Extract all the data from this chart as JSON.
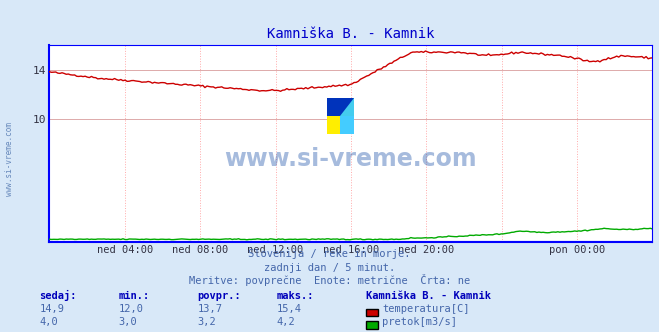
{
  "title": "Kamniška B. - Kamnik",
  "bg_color": "#d8e8f8",
  "plot_bg_color": "#ffffff",
  "x_labels": [
    "ned 04:00",
    "ned 08:00",
    "ned 12:00",
    "ned 16:00",
    "ned 20:00",
    "pon 00:00"
  ],
  "x_ticks_frac": [
    0.125,
    0.25,
    0.375,
    0.5,
    0.625,
    0.875
  ],
  "ylim": [
    0,
    16.0
  ],
  "yticks": [
    10,
    14
  ],
  "grid_color_h": "#ddaaaa",
  "grid_color_v": "#ffaaaa",
  "temp_color": "#cc0000",
  "flow_color": "#00aa00",
  "blue_line_color": "#0000ff",
  "text_color": "#4466aa",
  "title_color": "#0000cc",
  "watermark": "www.si-vreme.com",
  "watermark_color": "#2255aa",
  "side_watermark_color": "#6688bb",
  "subtitle1": "Slovenija / reke in morje.",
  "subtitle2": "zadnji dan / 5 minut.",
  "subtitle3": "Meritve: povprečne  Enote: metrične  Črta: ne",
  "temp_now": "14,9",
  "temp_min": "12,0",
  "temp_avg": "13,7",
  "temp_max": "15,4",
  "flow_now": "4,0",
  "flow_min": "3,0",
  "flow_avg": "3,2",
  "flow_max": "4,2",
  "station": "Kamniška B. - Kamnik",
  "n_points": 288,
  "temp_scale_min": 0,
  "temp_scale_max": 16.0,
  "flow_scale_min": 0,
  "flow_scale_max": 16.0
}
